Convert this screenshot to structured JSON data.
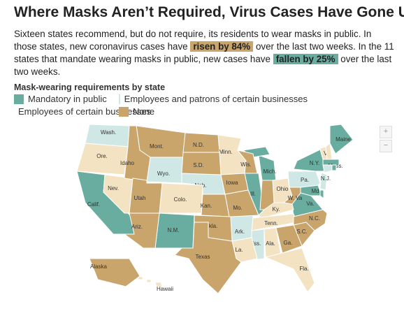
{
  "header": {
    "title": "Where Masks Aren’t Required, Virus Cases Have Gone Up",
    "text_1": "Sixteen states recommend, but do not require, its residents to wear masks in public. In those states, new coronavirus cases have",
    "highlight_1": "risen by 84%",
    "text_2": "over the last two weeks. In the 11 states that mandate wearing masks in public, new cases have",
    "highlight_2": "fallen by 25%",
    "text_3": "over the last two weeks."
  },
  "legend": {
    "title": "Mask-wearing requirements by state",
    "items": [
      {
        "label": "Mandatory in public",
        "color": "#68ad9f",
        "states": [
          "Calif.",
          "N.M.",
          "Ill.",
          "Mich.",
          "Maine",
          "N.Y.",
          "Mass.",
          "Va.",
          "Md.",
          null,
          null
        ]
      },
      {
        "label": "Employees and patrons of certain businesses",
        "color": "#cfe8e6",
        "states": [
          "Wash.",
          "Wyo.",
          "Neb.",
          "Pa.",
          "N.J.",
          "Ark.",
          "Miss.",
          null
        ]
      },
      {
        "label": "Employees of certain businesses",
        "color": "#f3e3c2",
        "states": [
          "Ore.",
          "Nev.",
          "Colo.",
          "Minn.",
          "Ohio",
          "Ky.",
          "Tenn.",
          "La.",
          "Ala.",
          "Fla.",
          "Vt.",
          null,
          "Hawaii"
        ]
      },
      {
        "label": "None",
        "color": "#c9a56c",
        "states": [
          "Mont.",
          "Idaho",
          "Utah",
          "Ariz.",
          "N.D.",
          "S.D.",
          "Kan.",
          "Okla.",
          "Texas",
          "Iowa",
          "Mo.",
          "Wis.",
          null,
          "W. Va",
          "N.C.",
          "S.C.",
          "Ga.",
          "Alaska"
        ]
      }
    ]
  }
}
